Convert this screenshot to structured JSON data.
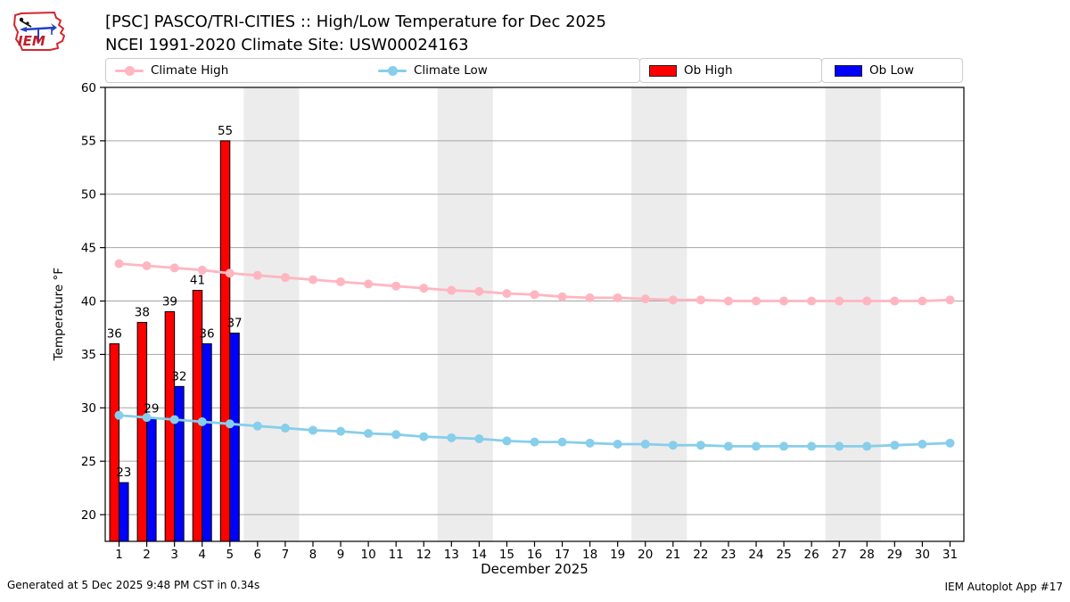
{
  "header": {
    "title_line1": "[PSC] PASCO/TRI-CITIES :: High/Low Temperature for Dec 2025",
    "title_line2": "NCEI 1991-2020 Climate Site: USW00024163",
    "logo_text": "IEM"
  },
  "legend": {
    "climate_high": "Climate High",
    "climate_low": "Climate Low",
    "ob_high": "Ob High",
    "ob_low": "Ob Low"
  },
  "footer": {
    "generated": "Generated at 5 Dec 2025 9:48 PM CST in 0.34s",
    "app": "IEM Autoplot App #17"
  },
  "colors": {
    "climate_high": "#ffb6c1",
    "climate_low": "#87ceeb",
    "ob_high": "#ff0000",
    "ob_low": "#0000ff",
    "weekend_band": "#ececec",
    "gridline": "#a6a6a6",
    "axis": "#000000",
    "logo_red": "#d22730",
    "logo_blue": "#2540c8"
  },
  "chart_data": {
    "type": "bar",
    "title": "[PSC] PASCO/TRI-CITIES :: High/Low Temperature for Dec 2025",
    "subtitle": "NCEI 1991-2020 Climate Site: USW00024163",
    "xlabel": "December 2025",
    "ylabel": "Temperature °F",
    "ylim": [
      17.5,
      60
    ],
    "yticks": [
      20,
      25,
      30,
      35,
      40,
      45,
      50,
      55,
      60
    ],
    "grid": "horizontal",
    "legend_position": "top",
    "x": [
      1,
      2,
      3,
      4,
      5,
      6,
      7,
      8,
      9,
      10,
      11,
      12,
      13,
      14,
      15,
      16,
      17,
      18,
      19,
      20,
      21,
      22,
      23,
      24,
      25,
      26,
      27,
      28,
      29,
      30,
      31
    ],
    "weekend_bands": [
      [
        5.5,
        7.5
      ],
      [
        12.5,
        14.5
      ],
      [
        19.5,
        21.5
      ],
      [
        26.5,
        28.5
      ]
    ],
    "series": [
      {
        "name": "Climate High",
        "type": "line",
        "color": "#ffb6c1",
        "values": [
          43.5,
          43.3,
          43.1,
          42.9,
          42.6,
          42.4,
          42.2,
          42.0,
          41.8,
          41.6,
          41.4,
          41.2,
          41.0,
          40.9,
          40.7,
          40.6,
          40.4,
          40.3,
          40.3,
          40.2,
          40.1,
          40.1,
          40.0,
          40.0,
          40.0,
          40.0,
          40.0,
          40.0,
          40.0,
          40.0,
          40.1
        ]
      },
      {
        "name": "Climate Low",
        "type": "line",
        "color": "#87ceeb",
        "values": [
          29.3,
          29.1,
          28.9,
          28.7,
          28.5,
          28.3,
          28.1,
          27.9,
          27.8,
          27.6,
          27.5,
          27.3,
          27.2,
          27.1,
          26.9,
          26.8,
          26.8,
          26.7,
          26.6,
          26.6,
          26.5,
          26.5,
          26.4,
          26.4,
          26.4,
          26.4,
          26.4,
          26.4,
          26.5,
          26.6,
          26.7
        ]
      },
      {
        "name": "Ob High",
        "type": "bar",
        "color": "#ff0000",
        "labeled": true,
        "values": [
          36,
          38,
          39,
          41,
          55,
          null,
          null,
          null,
          null,
          null,
          null,
          null,
          null,
          null,
          null,
          null,
          null,
          null,
          null,
          null,
          null,
          null,
          null,
          null,
          null,
          null,
          null,
          null,
          null,
          null,
          null
        ]
      },
      {
        "name": "Ob Low",
        "type": "bar",
        "color": "#0000ff",
        "labeled": true,
        "values": [
          23,
          29,
          32,
          36,
          37,
          null,
          null,
          null,
          null,
          null,
          null,
          null,
          null,
          null,
          null,
          null,
          null,
          null,
          null,
          null,
          null,
          null,
          null,
          null,
          null,
          null,
          null,
          null,
          null,
          null,
          null
        ]
      }
    ]
  }
}
